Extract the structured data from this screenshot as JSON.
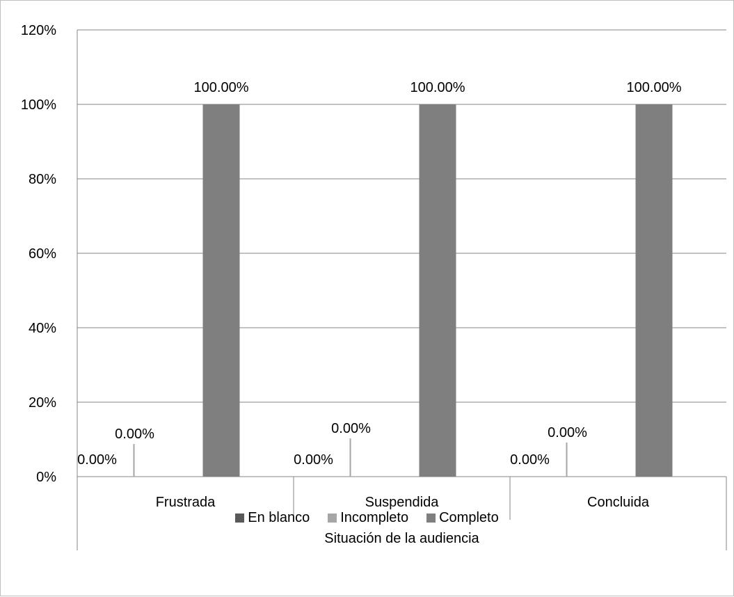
{
  "chart_data": {
    "type": "bar",
    "categories": [
      "Frustrada",
      "Suspendida",
      "Concluida"
    ],
    "series": [
      {
        "name": "En blanco",
        "values": [
          0,
          0,
          0
        ],
        "labels": [
          "0.00%",
          "0.00%",
          "0.00%"
        ],
        "color": "#595959"
      },
      {
        "name": "Incompleto",
        "values": [
          0,
          0,
          0
        ],
        "labels": [
          "0.00%",
          "0.00%",
          "0.00%"
        ],
        "color": "#a6a6a6"
      },
      {
        "name": "Completo",
        "values": [
          100,
          100,
          100
        ],
        "labels": [
          "100.00%",
          "100.00%",
          "100.00%"
        ],
        "color": "#7f7f7f"
      }
    ],
    "xlabel": "Situación de la audiencia",
    "ylabel": "",
    "ylim": [
      0,
      120
    ],
    "yticks": [
      "0%",
      "20%",
      "40%",
      "60%",
      "80%",
      "100%",
      "120%"
    ],
    "grid": true,
    "legend_position": "bottom"
  }
}
